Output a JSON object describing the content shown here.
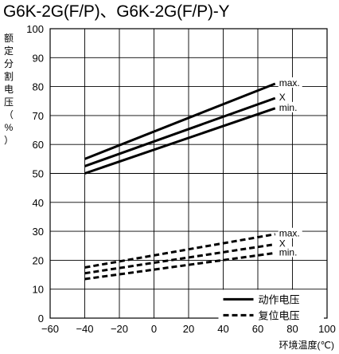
{
  "title": "G6K-2G(F/P)、G6K-2G(F/P)-Y",
  "chart_data": {
    "type": "line",
    "ylabel": "额定分割电压（%）",
    "xlabel": "环境温度(℃)",
    "xlim": [
      -60,
      100
    ],
    "ylim": [
      0,
      100
    ],
    "x_ticks": [
      "−60",
      "−40",
      "−20",
      "0",
      "20",
      "40",
      "60",
      "80",
      "100"
    ],
    "y_ticks": [
      "0",
      "10",
      "20",
      "30",
      "40",
      "50",
      "60",
      "70",
      "80",
      "90",
      "100"
    ],
    "grid": true,
    "legend": {
      "position": "bottom-right",
      "entries": [
        {
          "label": "动作电压",
          "style": "solid"
        },
        {
          "label": "复位电压",
          "style": "dashed"
        }
      ]
    },
    "series": [
      {
        "name": "max.",
        "group": "动作电压",
        "style": "solid",
        "x": [
          -40,
          70
        ],
        "y": [
          55,
          81
        ]
      },
      {
        "name": "X",
        "group": "动作电压",
        "style": "solid",
        "x": [
          -40,
          70
        ],
        "y": [
          52.5,
          76
        ]
      },
      {
        "name": "min.",
        "group": "动作电压",
        "style": "solid",
        "x": [
          -40,
          70
        ],
        "y": [
          50,
          72.5
        ]
      },
      {
        "name": "max.",
        "group": "复位电压",
        "style": "dashed",
        "x": [
          -40,
          70
        ],
        "y": [
          17.5,
          29
        ]
      },
      {
        "name": "X",
        "group": "复位电压",
        "style": "dashed",
        "x": [
          -40,
          70
        ],
        "y": [
          15.5,
          25.5
        ]
      },
      {
        "name": "min.",
        "group": "复位电压",
        "style": "dashed",
        "x": [
          -40,
          70
        ],
        "y": [
          13.5,
          22.5
        ]
      }
    ]
  }
}
